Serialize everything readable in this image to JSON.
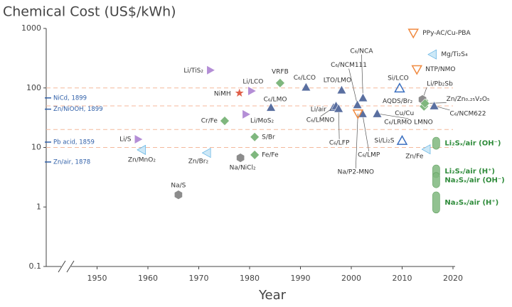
{
  "chart_data": {
    "type": "scatter",
    "title": "Chemical Cost (US$/kWh)",
    "x_label": "Year",
    "xlim": [
      1940,
      2020
    ],
    "xticks": [
      1950,
      1960,
      1970,
      1980,
      1990,
      2000,
      2010,
      2020
    ],
    "ylim": [
      0.1,
      1000
    ],
    "yticks": [
      0.1,
      1,
      10,
      100,
      1000
    ],
    "log_y": true,
    "reference_lines": [
      100,
      50,
      20,
      10
    ],
    "reference_labels": [
      {
        "label": "NiCd, 1899",
        "value": 68
      },
      {
        "label": "Zn/NiOOH, 1899",
        "value": 44
      },
      {
        "label": "Pb acid, 1859",
        "value": 12.3
      },
      {
        "label": "Zn/air, 1878",
        "value": 5.7
      }
    ],
    "points": [
      {
        "label": "Li/S",
        "x": 1958.1,
        "y": 13.7,
        "marker": "triangle-right",
        "color": "#b48ed6"
      },
      {
        "label": "Zn/MnO₂",
        "x": 1958.8,
        "y": 9.1,
        "marker": "triangle-left",
        "color": "#4aa8e0"
      },
      {
        "label": "Na/S",
        "x": 1966,
        "y": 1.6,
        "marker": "hexagon",
        "color": "#8c8c8c"
      },
      {
        "label": "Li/TiS₂",
        "x": 1972.3,
        "y": 199,
        "marker": "triangle-right",
        "color": "#b48ed6"
      },
      {
        "label": "Zn/Br₂",
        "x": 1971.6,
        "y": 8.1,
        "marker": "triangle-left",
        "color": "#4aa8e0"
      },
      {
        "label": "NiMH",
        "x": 1978,
        "y": 82,
        "marker": "star",
        "color": "#e0604a"
      },
      {
        "label": "Li/LCO",
        "x": 1980.4,
        "y": 89,
        "marker": "triangle-right",
        "color": "#b48ed6"
      },
      {
        "label": "Cr/Fe",
        "x": 1975.1,
        "y": 28,
        "marker": "diamond",
        "color": "#7fb77e"
      },
      {
        "label": "Li/MoS₂",
        "x": 1979.3,
        "y": 36,
        "marker": "triangle-right",
        "color": "#b48ed6"
      },
      {
        "label": "Na/NiCl₂",
        "x": 1978.2,
        "y": 6.7,
        "marker": "hexagon",
        "color": "#8c8c8c"
      },
      {
        "label": "S/Br",
        "x": 1981,
        "y": 15,
        "marker": "diamond",
        "color": "#7fb77e"
      },
      {
        "label": "Fe/Fe",
        "x": 1981,
        "y": 7.5,
        "marker": "diamond",
        "color": "#7fb77e"
      },
      {
        "label": "VRFB",
        "x": 1986,
        "y": 121,
        "marker": "diamond",
        "color": "#7fb77e"
      },
      {
        "label": "C₆/LMO",
        "x": 1984.2,
        "y": 47,
        "marker": "triangle-up",
        "color": "#5a6fa0"
      },
      {
        "label": "C₆/LCO",
        "x": 1991.1,
        "y": 103,
        "marker": "triangle-up",
        "color": "#5a6fa0"
      },
      {
        "label": "LTO/LMO",
        "x": 1998.1,
        "y": 92,
        "marker": "triangle-up",
        "color": "#5a6fa0"
      },
      {
        "label": "Li/air",
        "x": 1996.5,
        "y": 47,
        "marker": "triangle-up",
        "color": "#5a6fa0"
      },
      {
        "label": "C₆/LMNO",
        "x": 1997,
        "y": 50,
        "marker": "triangle-up",
        "color": "#5a6fa0"
      },
      {
        "label": "C₆/LFP",
        "x": 1997.5,
        "y": 45,
        "marker": "triangle-up",
        "color": "#5a6fa0"
      },
      {
        "label": "C₆/NCM111",
        "x": 2001.2,
        "y": 52,
        "marker": "triangle-up",
        "color": "#5a6fa0"
      },
      {
        "label": "C₆/NCA",
        "x": 2002.3,
        "y": 68,
        "marker": "triangle-up",
        "color": "#5a6fa0"
      },
      {
        "label": "C₆/LMP",
        "x": 2002.2,
        "y": 37,
        "marker": "triangle-up",
        "color": "#5a6fa0"
      },
      {
        "label": "Na/P2-MNO",
        "x": 2001.3,
        "y": 37,
        "marker": "triangle-down-open",
        "color": "#f08a40"
      },
      {
        "label": "C₆/LRMO LMNO",
        "x": 2005.1,
        "y": 37,
        "marker": "triangle-up",
        "color": "#5a6fa0"
      },
      {
        "label": "Si/LCO",
        "x": 2009.5,
        "y": 99,
        "marker": "triangle-up-open",
        "color": "#3a6fc0"
      },
      {
        "label": "Si/Li₂S",
        "x": 2010,
        "y": 13,
        "marker": "triangle-up-open",
        "color": "#3a6fc0"
      },
      {
        "label": "Zn/Fe",
        "x": 2014.8,
        "y": 9.3,
        "marker": "triangle-left",
        "color": "#4aa8e0"
      },
      {
        "label": "PPy-AC/Cu-PBA",
        "x": 2012.2,
        "y": 840,
        "marker": "triangle-down-open",
        "color": "#f08a40"
      },
      {
        "label": "Mg/Ti₂S₄",
        "x": 2016,
        "y": 365,
        "marker": "triangle-left",
        "color": "#4aa8e0"
      },
      {
        "label": "NTP/NMO",
        "x": 2012.9,
        "y": 205,
        "marker": "triangle-down-open",
        "color": "#f08a40"
      },
      {
        "label": "AQDS/Br₂",
        "x": 2014.3,
        "y": 61,
        "marker": "diamond",
        "color": "#7fb77e"
      },
      {
        "label": "Cu/Cu",
        "x": 2014.3,
        "y": 49,
        "marker": "diamond",
        "color": "#7fb77e"
      },
      {
        "label": "Li/Pb₂Sb",
        "x": 2014,
        "y": 64,
        "marker": "hexagon",
        "color": "#8c8c8c"
      },
      {
        "label": "Zn/Zn₀.₂₅V₂O₅",
        "x": 2014.5,
        "y": 55,
        "marker": "diamond",
        "color": "#7fb77e"
      },
      {
        "label": "C₆/NCM622",
        "x": 2016.3,
        "y": 50,
        "marker": "triangle-up",
        "color": "#5a6fa0"
      }
    ],
    "ranges": [
      {
        "label": "Li₂Sₓ/air (OH⁻)",
        "x": 2016.7,
        "low": 9.3,
        "high": 14.9,
        "color": "#7fb77e"
      },
      {
        "label": "Li₂Sₓ/air (H⁺)",
        "x": 2016.7,
        "low": 3.1,
        "high": 5.1,
        "color": "#7fb77e"
      },
      {
        "label": "Na₂Sₓ/air (OH⁻)",
        "x": 2016.7,
        "low": 2.1,
        "high": 3.8,
        "color": "#7fb77e"
      },
      {
        "label": "Na₂Sₓ/air (H⁺)",
        "x": 2016.7,
        "low": 0.79,
        "high": 1.8,
        "color": "#7fb77e"
      }
    ]
  }
}
